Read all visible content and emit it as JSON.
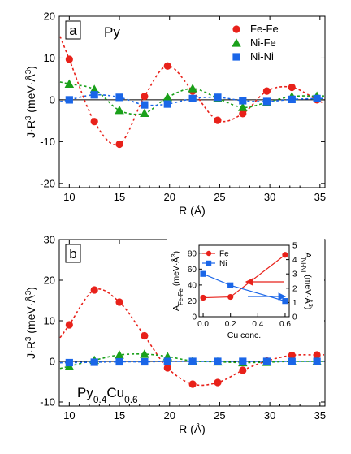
{
  "chart_data": [
    {
      "panel": "a",
      "type": "scatter",
      "panel_label": "a",
      "material": "Py",
      "xlabel": "R (Å)",
      "ylabel": "J·R³ (meV·Å³)",
      "xlim": [
        9,
        35.5
      ],
      "ylim": [
        -21,
        20
      ],
      "xticks": [
        10,
        15,
        20,
        25,
        30,
        35
      ],
      "yticks": [
        -20,
        -10,
        0,
        10,
        20
      ],
      "legend_position": "top-right",
      "series": [
        {
          "name": "Fe-Fe",
          "color": "#e8211a",
          "marker": "circle",
          "x": [
            10,
            12.5,
            15,
            17.5,
            19.8,
            22.3,
            24.8,
            27.3,
            29.7,
            32.2,
            34.7
          ],
          "y": [
            9.7,
            -5.2,
            -10.6,
            0.8,
            8.1,
            2.1,
            -4.9,
            -3.3,
            2.1,
            3.0,
            0.0
          ]
        },
        {
          "name": "Ni-Fe",
          "color": "#1aa01a",
          "marker": "triangle",
          "x": [
            10,
            12.5,
            15,
            17.5,
            19.8,
            22.3,
            24.8,
            27.3,
            29.7,
            32.2,
            34.7
          ],
          "y": [
            3.8,
            2.5,
            -2.5,
            -3.2,
            0.6,
            2.7,
            0.4,
            -1.8,
            -0.6,
            0.8,
            0.9
          ]
        },
        {
          "name": "Ni-Ni",
          "color": "#1a66e8",
          "marker": "square",
          "x": [
            10,
            12.5,
            15,
            17.5,
            19.8,
            22.3,
            24.8,
            27.3,
            29.7,
            32.2,
            34.7
          ],
          "y": [
            0.0,
            1.2,
            0.6,
            -1.2,
            -1.0,
            0.3,
            0.6,
            -0.2,
            -0.4,
            0.1,
            0.3
          ]
        }
      ]
    },
    {
      "panel": "b",
      "type": "scatter",
      "panel_label": "b",
      "material": "Py0.4Cu0.6",
      "xlabel": "R (Å)",
      "ylabel": "J·R³ (meV·Å³)",
      "xlim": [
        9,
        35.5
      ],
      "ylim": [
        -11,
        30
      ],
      "xticks": [
        10,
        15,
        20,
        25,
        30,
        35
      ],
      "yticks": [
        -10,
        0,
        10,
        20,
        30
      ],
      "series": [
        {
          "name": "Fe-Fe",
          "color": "#e8211a",
          "marker": "circle",
          "x": [
            10,
            12.5,
            15,
            17.5,
            19.8,
            22.3,
            24.8,
            27.3,
            29.7,
            32.2,
            34.7
          ],
          "y": [
            9.0,
            17.6,
            14.6,
            6.3,
            -1.6,
            -5.6,
            -5.2,
            -2.2,
            0.1,
            1.5,
            1.6
          ]
        },
        {
          "name": "Ni-Fe",
          "color": "#1aa01a",
          "marker": "triangle",
          "x": [
            10,
            12.5,
            15,
            17.5,
            19.8,
            22.3,
            24.8,
            27.3,
            29.7,
            32.2,
            34.7
          ],
          "y": [
            -1.2,
            0.3,
            1.6,
            1.8,
            1.2,
            0.1,
            -0.1,
            -0.3,
            -0.2,
            0.0,
            0.0
          ]
        },
        {
          "name": "Ni-Ni",
          "color": "#1a66e8",
          "marker": "square",
          "x": [
            10,
            12.5,
            15,
            17.5,
            19.8,
            22.3,
            24.8,
            27.3,
            29.7,
            32.2,
            34.7
          ],
          "y": [
            -0.3,
            -0.2,
            -0.1,
            -0.1,
            0.0,
            0.0,
            0.0,
            0.0,
            0.0,
            0.0,
            0.0
          ]
        }
      ]
    },
    {
      "panel": "inset",
      "type": "line",
      "xlabel": "Cu conc.",
      "ylabel_left": "A_Fe-Fe (meV·Å³)",
      "ylabel_right": "A_Ni-Ni (meV·Å³)",
      "xlim": [
        -0.03,
        0.63
      ],
      "ylim_left": [
        0,
        90
      ],
      "ylim_right": [
        0,
        5
      ],
      "xticks": [
        0.0,
        0.2,
        0.4,
        0.6
      ],
      "yticks_left": [
        0,
        20,
        40,
        60,
        80
      ],
      "yticks_right": [
        0,
        1,
        2,
        3,
        4,
        5
      ],
      "legend_position": "top-left",
      "series": [
        {
          "name": "Fe",
          "axis": "left",
          "color": "#e8211a",
          "marker": "circle",
          "x": [
            0.0,
            0.2,
            0.6
          ],
          "y": [
            24,
            25,
            78
          ]
        },
        {
          "name": "Ni",
          "axis": "right",
          "color": "#1a66e8",
          "marker": "square",
          "x": [
            0.0,
            0.2,
            0.6
          ],
          "y": [
            3.0,
            2.2,
            1.1
          ]
        }
      ]
    }
  ]
}
